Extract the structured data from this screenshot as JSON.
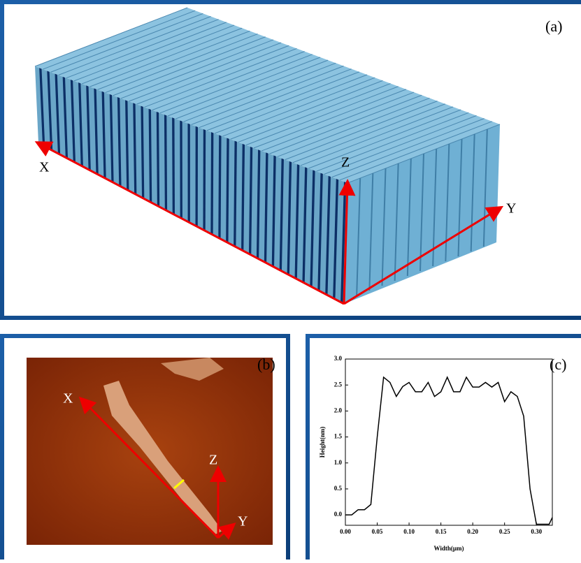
{
  "panel_a": {
    "label": "(a)",
    "axis_x": "X",
    "axis_z": "Z",
    "axis_y": "Y"
  },
  "panel_b": {
    "label": "(b)",
    "axis_x": "X",
    "axis_z": "Z",
    "axis_y": "Y"
  },
  "chart_data": {
    "type": "line",
    "label": "(c)",
    "x_label": "Width(μm)",
    "y_label": "Height(nm)",
    "x": [
      0,
      0.01,
      0.02,
      0.03,
      0.04,
      0.05,
      0.06,
      0.07,
      0.08,
      0.09,
      0.1,
      0.11,
      0.12,
      0.13,
      0.14,
      0.15,
      0.16,
      0.17,
      0.18,
      0.19,
      0.2,
      0.21,
      0.22,
      0.23,
      0.24,
      0.25,
      0.26,
      0.27,
      0.28,
      0.29,
      0.3,
      0.31,
      0.32,
      0.325
    ],
    "series": [
      {
        "color": "#000000",
        "values": [
          0.0,
          0.0,
          0.1,
          0.1,
          0.2,
          1.5,
          2.65,
          2.55,
          2.28,
          2.47,
          2.55,
          2.37,
          2.37,
          2.55,
          2.28,
          2.37,
          2.65,
          2.37,
          2.37,
          2.65,
          2.46,
          2.46,
          2.55,
          2.46,
          2.55,
          2.18,
          2.37,
          2.28,
          1.9,
          0.5,
          -0.18,
          -0.18,
          -0.18,
          -0.05
        ]
      }
    ],
    "xlim": [
      0,
      0.325
    ],
    "ylim": [
      -0.2,
      3.0
    ],
    "xticks": [
      {
        "value": 0,
        "label": "0.00"
      },
      {
        "value": 0.05,
        "label": "0.05"
      },
      {
        "value": 0.1,
        "label": "0.10"
      },
      {
        "value": 0.15,
        "label": "0.15"
      },
      {
        "value": 0.2,
        "label": "0.20"
      },
      {
        "value": 0.25,
        "label": "0.25"
      },
      {
        "value": 0.3,
        "label": "0.30"
      }
    ],
    "yticks": [
      {
        "value": 0,
        "label": "0.0"
      },
      {
        "value": 0.5,
        "label": "0.5"
      },
      {
        "value": 1.0,
        "label": "1.0"
      },
      {
        "value": 1.5,
        "label": "1.5"
      },
      {
        "value": 2.0,
        "label": "2.0"
      },
      {
        "value": 2.5,
        "label": "2.5"
      },
      {
        "value": 3.0,
        "label": "3.0"
      }
    ]
  }
}
